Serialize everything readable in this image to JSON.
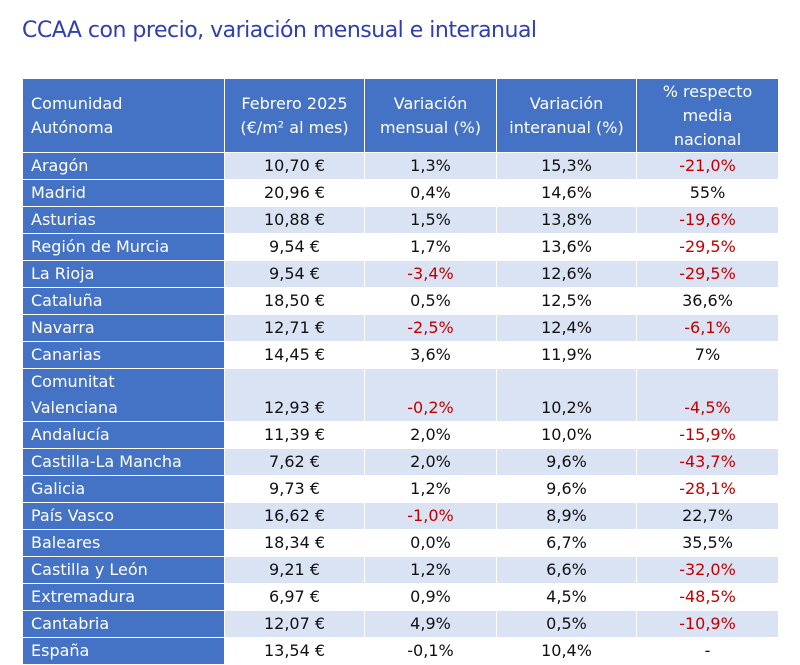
{
  "title": "CCAA con precio, variación mensual e interanual",
  "table": {
    "header": [
      "Comunidad\nAutónoma",
      "Febrero 2025\n(€/m² al mes)",
      "Variación\nmensual (%)",
      "Variación\ninteranual (%)",
      "% respecto\nmedia\nnacional"
    ],
    "rows": [
      [
        "Aragón",
        "10,70 €",
        "1,3%",
        "15,3%",
        "-21,0%"
      ],
      [
        "Madrid",
        "20,96 €",
        "0,4%",
        "14,6%",
        "55%"
      ],
      [
        "Asturias",
        "10,88 €",
        "1,5%",
        "13,8%",
        "-19,6%"
      ],
      [
        "Región de Murcia",
        "9,54 €",
        "1,7%",
        "13,6%",
        "-29,5%"
      ],
      [
        "La Rioja",
        "9,54 €",
        "-3,4%",
        "12,6%",
        "-29,5%"
      ],
      [
        "Cataluña",
        "18,50 €",
        "0,5%",
        "12,5%",
        "36,6%"
      ],
      [
        "Navarra",
        "12,71 €",
        "-2,5%",
        "12,4%",
        "-6,1%"
      ],
      [
        "Canarias",
        "14,45 €",
        "3,6%",
        "11,9%",
        "7%"
      ],
      [
        "Comunitat\nValenciana",
        "12,93 €",
        "-0,2%",
        "10,2%",
        "-4,5%"
      ],
      [
        "Andalucía",
        "11,39 €",
        "2,0%",
        "10,0%",
        "-15,9%"
      ],
      [
        "Castilla-La Mancha",
        "7,62 €",
        "2,0%",
        "9,6%",
        "-43,7%"
      ],
      [
        "Galicia",
        "9,73 €",
        "1,2%",
        "9,6%",
        "-28,1%"
      ],
      [
        "País Vasco",
        "16,62 €",
        "-1,0%",
        "8,9%",
        "22,7%"
      ],
      [
        "Baleares",
        "18,34 €",
        "0,0%",
        "6,7%",
        "35,5%"
      ],
      [
        "Castilla y León",
        "9,21 €",
        "1,2%",
        "6,6%",
        "-32,0%"
      ],
      [
        "Extremadura",
        "6,97 €",
        "0,9%",
        "4,5%",
        "-48,5%"
      ],
      [
        "Cantabria",
        "12,07 €",
        "4,9%",
        "0,5%",
        "-10,9%"
      ],
      [
        "España",
        "13,54 €",
        "-0,1%",
        "10,4%",
        "-"
      ]
    ]
  }
}
